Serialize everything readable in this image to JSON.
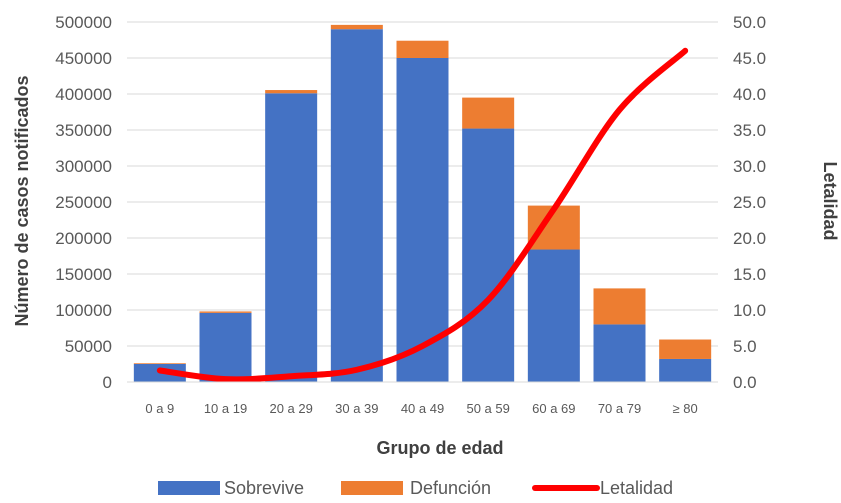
{
  "chart_data": {
    "type": "bar",
    "stacked": true,
    "categories": [
      "0 a 9",
      "10 a 19",
      "20 a 29",
      "30 a 39",
      "40 a 49",
      "50 a 59",
      "60 a 69",
      "70 a 79",
      "≥ 80"
    ],
    "series": [
      {
        "name": "Sobrevive",
        "type": "bar",
        "axis": "left",
        "color": "#4472C4",
        "values": [
          25000,
          96000,
          401000,
          490000,
          450000,
          352000,
          184000,
          80000,
          32000
        ]
      },
      {
        "name": "Defunción",
        "type": "bar",
        "axis": "left",
        "color": "#ED7D31",
        "values": [
          1000,
          2000,
          4500,
          6000,
          24000,
          43000,
          61000,
          50000,
          27000
        ]
      },
      {
        "name": "Letalidad",
        "type": "line",
        "axis": "right",
        "color": "#FF0000",
        "values": [
          1.6,
          0.4,
          0.8,
          1.7,
          5.0,
          11.4,
          24.0,
          37.8,
          46.0
        ]
      }
    ],
    "xlabel": "Grupo de edad",
    "ylabel": "Número de casos notificados",
    "y2label": "Letalidad",
    "ylim": [
      0,
      500000
    ],
    "y2lim": [
      0,
      50
    ],
    "yticks": [
      "0",
      "50000",
      "100000",
      "150000",
      "200000",
      "250000",
      "300000",
      "350000",
      "400000",
      "450000",
      "500000"
    ],
    "y2ticks": [
      "0.0",
      "5.0",
      "10.0",
      "15.0",
      "20.0",
      "25.0",
      "30.0",
      "35.0",
      "40.0",
      "45.0",
      "50.0"
    ],
    "grid": true,
    "legend": "bottom"
  }
}
